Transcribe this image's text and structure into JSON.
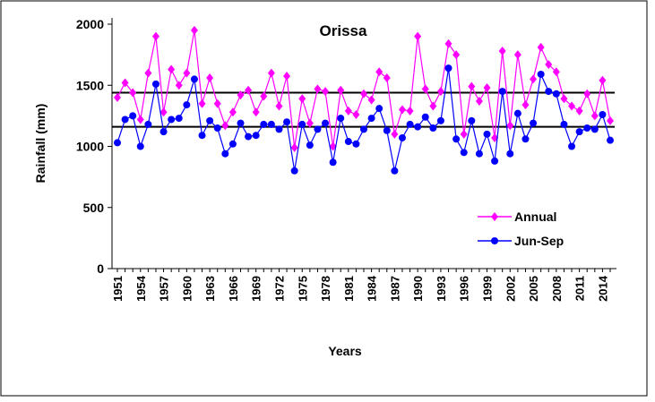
{
  "chart_data": {
    "type": "line",
    "title": "Orissa",
    "xlabel": "Years",
    "ylabel": "Rainfall (mm)",
    "categories": [
      "1951",
      null,
      null,
      "1954",
      null,
      null,
      "1957",
      null,
      null,
      "1960",
      null,
      null,
      "1963",
      null,
      null,
      "1966",
      null,
      null,
      "1969",
      null,
      null,
      "1972",
      null,
      null,
      "1975",
      null,
      null,
      "1978",
      null,
      null,
      "1981",
      null,
      null,
      "1984",
      null,
      null,
      "1987",
      null,
      null,
      "1990",
      null,
      null,
      "1993",
      null,
      null,
      "1996",
      null,
      null,
      "1999",
      null,
      null,
      "2002",
      null,
      null,
      "2005",
      null,
      null,
      "2008",
      null,
      null,
      "2011",
      null,
      null,
      "2014",
      null
    ],
    "series": [
      {
        "name": "Annual",
        "color": "#ff00ff",
        "marker": "diamond",
        "values": [
          1400,
          1520,
          1440,
          1220,
          1600,
          1900,
          1280,
          1630,
          1500,
          1600,
          1950,
          1350,
          1560,
          1350,
          1170,
          1280,
          1420,
          1460,
          1280,
          1410,
          1600,
          1330,
          1575,
          990,
          1390,
          1190,
          1470,
          1450,
          1000,
          1460,
          1290,
          1260,
          1430,
          1380,
          1610,
          1560,
          1100,
          1300,
          1290,
          1900,
          1470,
          1330,
          1450,
          1840,
          1750,
          1100,
          1490,
          1370,
          1480,
          1070,
          1780,
          1170,
          1750,
          1340,
          1550,
          1810,
          1670,
          1610,
          1390,
          1330,
          1290,
          1430,
          1250,
          1540,
          1210
        ]
      },
      {
        "name": "Jun-Sep",
        "color": "#0000ff",
        "marker": "circle",
        "values": [
          1030,
          1220,
          1250,
          1000,
          1180,
          1510,
          1120,
          1220,
          1230,
          1340,
          1550,
          1090,
          1210,
          1150,
          940,
          1020,
          1190,
          1080,
          1090,
          1180,
          1180,
          1140,
          1200,
          800,
          1180,
          1010,
          1140,
          1190,
          870,
          1230,
          1040,
          1020,
          1140,
          1230,
          1310,
          1130,
          800,
          1070,
          1180,
          1160,
          1240,
          1150,
          1210,
          1640,
          1060,
          950,
          1210,
          940,
          1100,
          880,
          1450,
          940,
          1270,
          1060,
          1190,
          1590,
          1450,
          1430,
          1180,
          1000,
          1120,
          1150,
          1140,
          1260,
          1050
        ]
      }
    ],
    "reference_lines": [
      1440,
      1160
    ],
    "ylim": [
      0,
      2000
    ],
    "yticks": [
      0,
      500,
      1000,
      1500,
      2000
    ],
    "grid": false,
    "legend": "lower right"
  }
}
